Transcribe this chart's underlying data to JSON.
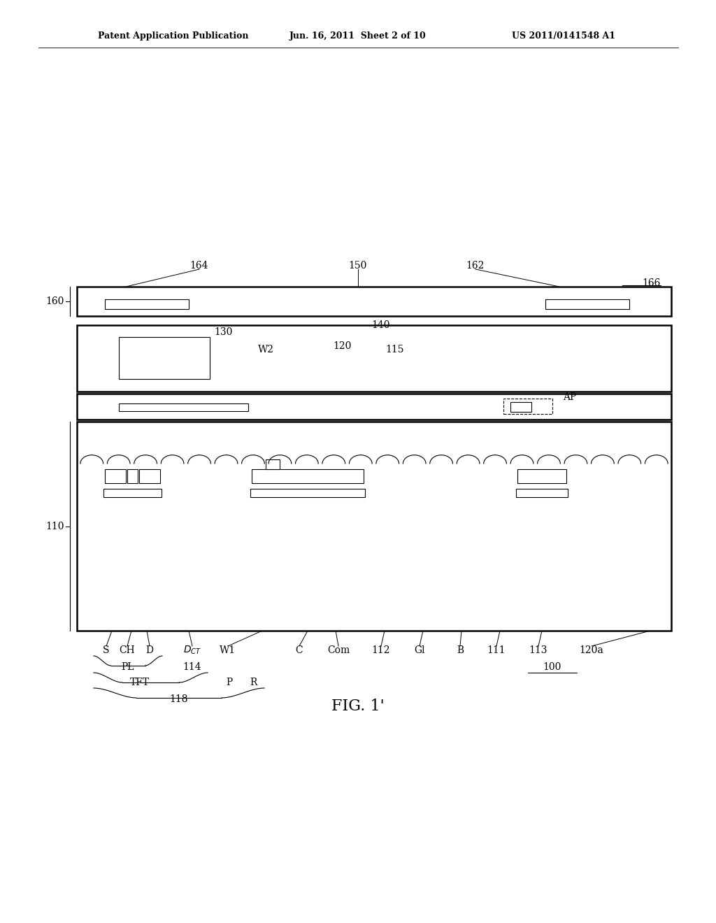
{
  "bg_color": "#ffffff",
  "header_left": "Patent Application Publication",
  "header_mid": "Jun. 16, 2011  Sheet 2 of 10",
  "header_right": "US 2011/0141548 A1",
  "figure_label": "FIG. 1'"
}
